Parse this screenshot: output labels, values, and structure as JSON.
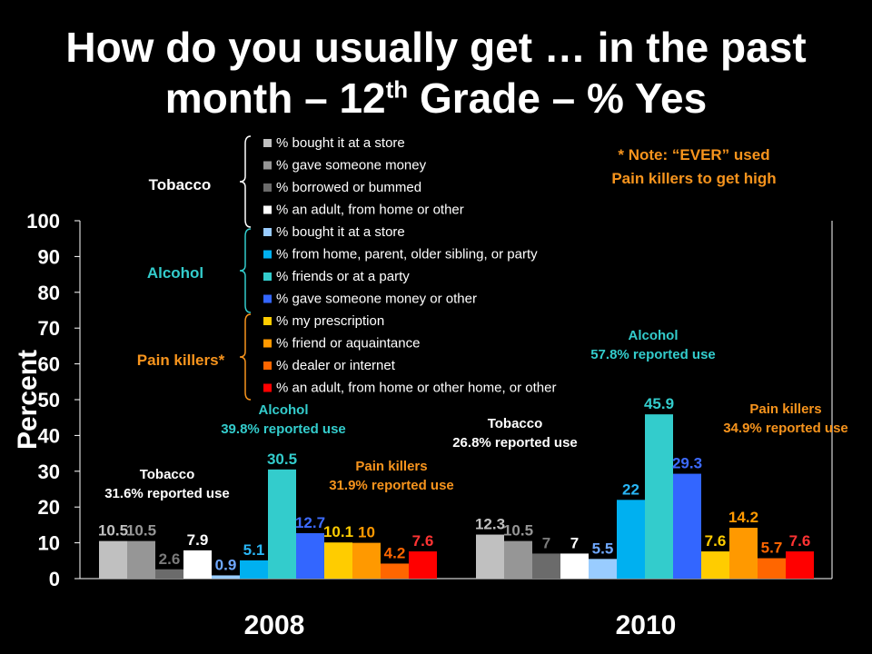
{
  "title": {
    "line1": "How do you usually get … in the past",
    "line2_pre": "month – 12",
    "line2_sup": "th",
    "line2_post": " Grade – % Yes"
  },
  "note": {
    "line1": "* Note: “EVER” used",
    "line2": "Pain killers to get high",
    "color": "#f7941d"
  },
  "chart_data": {
    "type": "bar",
    "ylabel": "Percent",
    "ylim": [
      0,
      100
    ],
    "yticks": [
      0,
      10,
      20,
      30,
      40,
      50,
      60,
      70,
      80,
      90,
      100
    ],
    "categories": [
      "2008",
      "2010"
    ],
    "series": [
      {
        "name": "% bought it at a store",
        "group": "Tobacco",
        "color": "#c0c0c0",
        "label_color": "#c0c0c0",
        "values": [
          10.5,
          12.3
        ]
      },
      {
        "name": "% gave someone money",
        "group": "Tobacco",
        "color": "#969696",
        "label_color": "#969696",
        "values": [
          10.5,
          10.5
        ]
      },
      {
        "name": "% borrowed or bummed",
        "group": "Tobacco",
        "color": "#6b6b6b",
        "label_color": "#7a7a7a",
        "values": [
          2.6,
          7
        ]
      },
      {
        "name": "% an adult, from home or other",
        "group": "Tobacco",
        "color": "#ffffff",
        "label_color": "#ffffff",
        "values": [
          7.9,
          7
        ]
      },
      {
        "name": "% bought it at a store",
        "group": "Alcohol",
        "color": "#99ccff",
        "label_color": "#6fa8ff",
        "values": [
          0.9,
          5.5
        ]
      },
      {
        "name": "% from home, parent, older sibling, or party",
        "group": "Alcohol",
        "color": "#00b0f0",
        "label_color": "#29b6f6",
        "values": [
          5.1,
          22
        ]
      },
      {
        "name": "% friends or at a party",
        "group": "Alcohol",
        "color": "#33cccc",
        "label_color": "#33cccc",
        "values": [
          30.5,
          45.9
        ]
      },
      {
        "name": "% gave someone money or other",
        "group": "Alcohol",
        "color": "#3366ff",
        "label_color": "#3d6bff",
        "values": [
          12.7,
          29.3
        ]
      },
      {
        "name": "% my prescription",
        "group": "Pain killers*",
        "color": "#ffcc00",
        "label_color": "#ffcc00",
        "values": [
          10.1,
          7.6
        ]
      },
      {
        "name": "% friend or aquaintance",
        "group": "Pain killers*",
        "color": "#ff9900",
        "label_color": "#ff9900",
        "values": [
          10,
          14.2
        ]
      },
      {
        "name": "% dealer or internet",
        "group": "Pain killers*",
        "color": "#ff6600",
        "label_color": "#ff6600",
        "values": [
          4.2,
          5.7
        ]
      },
      {
        "name": "% an adult, from home or other home, or other",
        "group": "Pain killers*",
        "color": "#ff0000",
        "label_color": "#ff3333",
        "values": [
          7.6,
          7.6
        ]
      }
    ],
    "legend_groups": [
      {
        "name": "Tobacco",
        "color": "#ffffff"
      },
      {
        "name": "Alcohol",
        "color": "#33cccc"
      },
      {
        "name": "Pain killers*",
        "color": "#f7941d"
      }
    ],
    "annotations": [
      {
        "group": "Tobacco",
        "year": "2008",
        "line1": "Tobacco",
        "line2": "31.6% reported use",
        "color": "#ffffff"
      },
      {
        "group": "Alcohol",
        "year": "2008",
        "line1": "Alcohol",
        "line2": "39.8% reported use",
        "color": "#33cccc"
      },
      {
        "group": "Pain killers",
        "year": "2008",
        "line1": "Pain killers",
        "line2": "31.9% reported use",
        "color": "#f7941d"
      },
      {
        "group": "Tobacco",
        "year": "2010",
        "line1": "Tobacco",
        "line2": "26.8% reported use",
        "color": "#ffffff"
      },
      {
        "group": "Alcohol",
        "year": "2010",
        "line1": "Alcohol",
        "line2": "57.8% reported use",
        "color": "#33cccc"
      },
      {
        "group": "Pain killers",
        "year": "2010",
        "line1": "Pain killers",
        "line2": "34.9% reported use",
        "color": "#f7941d"
      }
    ],
    "grid": false,
    "legend_position": "top-left inside plot"
  }
}
